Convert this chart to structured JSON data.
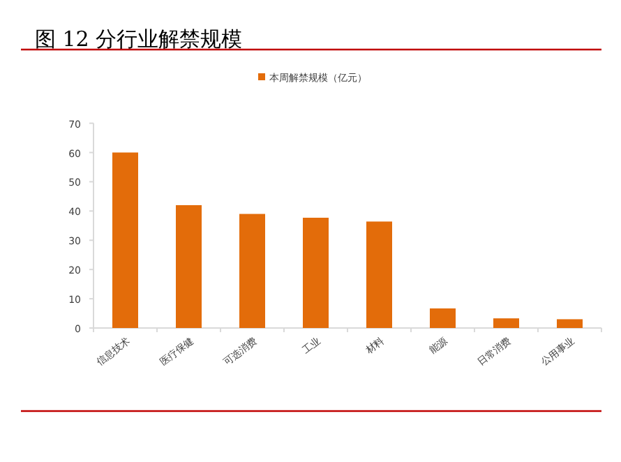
{
  "chart_data": {
    "type": "bar",
    "title": "图  12 分行业解禁规模",
    "categories": [
      "信息技术",
      "医疗保健",
      "可选消费",
      "工业",
      "材料",
      "能源",
      "日常消费",
      "公用事业"
    ],
    "series": [
      {
        "name": "本周解禁规模（亿元）",
        "color": "#e36c0a",
        "values": [
          60,
          42,
          39,
          37.7,
          36.4,
          6.7,
          3.3,
          3.0
        ]
      }
    ],
    "ylim": [
      0,
      70
    ],
    "yticks": [
      0,
      10,
      20,
      30,
      40,
      50,
      60,
      70
    ],
    "legend": "top",
    "grid": false
  }
}
